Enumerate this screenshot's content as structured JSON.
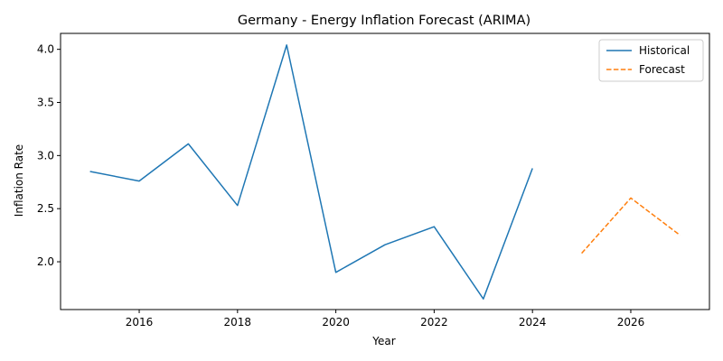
{
  "chart_data": {
    "type": "line",
    "title": "Germany - Energy Inflation Forecast (ARIMA)",
    "xlabel": "Year",
    "ylabel": "Inflation Rate",
    "xlim": [
      2014.4,
      2027.6
    ],
    "ylim": [
      1.55,
      4.15
    ],
    "x_ticks": [
      2016,
      2018,
      2020,
      2022,
      2024,
      2026
    ],
    "y_ticks": [
      2.0,
      2.5,
      3.0,
      3.5,
      4.0
    ],
    "grid": false,
    "legend_position": "top-right",
    "series": [
      {
        "name": "Historical",
        "color": "#1f77b4",
        "style": "solid",
        "x": [
          2015,
          2016,
          2017,
          2018,
          2019,
          2020,
          2021,
          2022,
          2023,
          2024
        ],
        "y": [
          2.85,
          2.76,
          3.11,
          2.53,
          4.04,
          1.9,
          2.16,
          2.33,
          1.65,
          2.88
        ]
      },
      {
        "name": "Forecast",
        "color": "#ff7f0e",
        "style": "dashed",
        "x": [
          2025,
          2026,
          2027
        ],
        "y": [
          2.08,
          2.6,
          2.25
        ]
      }
    ]
  }
}
